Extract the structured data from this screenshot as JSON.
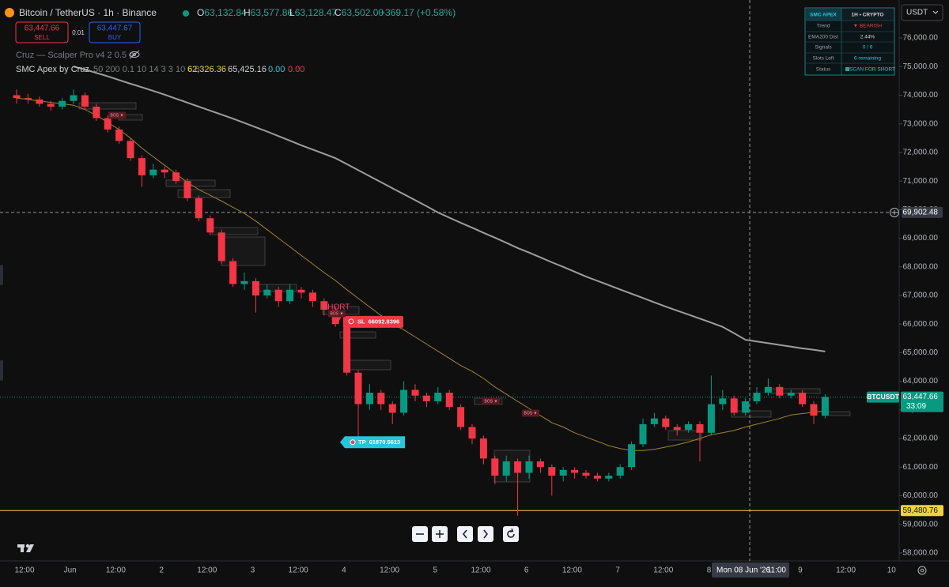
{
  "chart_data": {
    "type": "candlestick",
    "title": "Bitcoin / TetherUS · 1h · Binance",
    "legend_ohlc": [
      {
        "label": "O",
        "value": "63,132.84"
      },
      {
        "label": "H",
        "value": "63,577.86"
      },
      {
        "label": "L",
        "value": "63,128.47"
      },
      {
        "label": "C",
        "value": "63,502.00"
      }
    ],
    "change": "+369.17 (+0.58%)",
    "order": {
      "sell_price": "63,447.66",
      "sell": "SELL",
      "qty": "0.01",
      "buy_price": "63,447.67",
      "buy": "BUY"
    },
    "indicators": [
      {
        "name": "Cruz — Scalper Pro v4 2 0.5 4"
      },
      {
        "name": "SMC Apex by Cruz",
        "params": "50 200 0.1 10 14 3 3 10 6 8",
        "values": [
          "62,326.36",
          "65,425.16",
          "0.00",
          "0.00"
        ]
      }
    ],
    "currency": "USDT",
    "panel": {
      "header": [
        "SMC APEX",
        "1H • CRYPTO"
      ],
      "rows": [
        [
          "Trend",
          "▼ BEARISH"
        ],
        [
          "EMA200 Dist",
          "2.44%"
        ],
        [
          "Signals",
          "0 / 6"
        ],
        [
          "Slots Left",
          "6 remaining"
        ],
        [
          "Status",
          "SCAN FOR SHORT"
        ]
      ]
    },
    "up_color": "#089981",
    "down_color": "#f23645",
    "open": [
      74000,
      73900,
      73850,
      73700,
      73600,
      73800,
      74000,
      73600,
      73200,
      72800,
      72400,
      71800,
      71200,
      71400,
      71300,
      71000,
      70400,
      69700,
      69200,
      68200,
      67400,
      67500,
      67000,
      67200,
      66800,
      67200,
      67100,
      66800,
      66500,
      66000,
      64300,
      63200,
      63600,
      63200,
      62900,
      63700,
      63500,
      63300,
      63600,
      63100,
      62400,
      62000,
      61300,
      60700,
      61200,
      60800,
      61200,
      61000,
      60700,
      60900,
      60800,
      60700,
      60600,
      60700,
      61000,
      61800,
      62500,
      62700,
      62400,
      62300,
      62500,
      62200,
      63200,
      63400,
      62900,
      63300,
      63600,
      63800,
      63500,
      63600,
      63200,
      62800
    ],
    "high": [
      74200,
      74050,
      73950,
      73800,
      73900,
      74200,
      74100,
      73700,
      73300,
      72900,
      72500,
      71900,
      71600,
      71500,
      71400,
      71100,
      70500,
      69800,
      69300,
      68300,
      67800,
      67600,
      67400,
      67300,
      67400,
      67300,
      67200,
      66900,
      66600,
      66100,
      64400,
      63900,
      63700,
      63300,
      64000,
      63900,
      63600,
      63800,
      63700,
      63200,
      62500,
      62100,
      61400,
      61400,
      61300,
      61400,
      61300,
      61100,
      61000,
      61000,
      60900,
      60800,
      60800,
      61100,
      61900,
      62700,
      62900,
      62800,
      62500,
      62600,
      62600,
      64200,
      63700,
      63500,
      63400,
      63800,
      64100,
      63900,
      63700,
      63700,
      63300,
      63550
    ],
    "low": [
      73700,
      73700,
      73600,
      73450,
      73500,
      73700,
      73500,
      73100,
      72700,
      72300,
      71700,
      70800,
      71100,
      71100,
      70900,
      70300,
      69600,
      69100,
      68100,
      67300,
      67200,
      66400,
      66900,
      66600,
      66700,
      66900,
      66600,
      66300,
      65900,
      64200,
      61870,
      63000,
      63000,
      62500,
      62800,
      63300,
      63100,
      63200,
      63000,
      62300,
      61800,
      61100,
      60400,
      60500,
      59300,
      60600,
      60800,
      60000,
      60500,
      60600,
      60600,
      60500,
      60500,
      60600,
      60900,
      61700,
      62400,
      62300,
      62100,
      62200,
      61200,
      62100,
      63000,
      62800,
      62800,
      63200,
      63500,
      63400,
      63400,
      63100,
      62500,
      62700
    ],
    "close": [
      73900,
      73850,
      73700,
      73600,
      73800,
      74000,
      73600,
      73200,
      72800,
      72400,
      71800,
      71200,
      71400,
      71300,
      71000,
      70400,
      69700,
      69200,
      68200,
      67400,
      67500,
      67000,
      67200,
      66800,
      67200,
      67100,
      66800,
      66500,
      66000,
      64300,
      63200,
      63600,
      63200,
      62900,
      63700,
      63500,
      63300,
      63600,
      63100,
      62400,
      62000,
      61300,
      60700,
      61200,
      60800,
      61200,
      61000,
      60700,
      60900,
      60800,
      60700,
      60600,
      60700,
      61000,
      61800,
      62500,
      62700,
      62400,
      62300,
      62500,
      62200,
      63200,
      63400,
      62900,
      63300,
      63600,
      63800,
      63500,
      63600,
      63200,
      62800,
      63450
    ],
    "series": [
      {
        "color": "#a08429",
        "values": [
          73900,
          73850,
          73800,
          73750,
          73700,
          73650,
          73500,
          73300,
          73050,
          72800,
          72500,
          72150,
          71850,
          71550,
          71250,
          70950,
          70700,
          70500,
          70300,
          70080,
          69870,
          69600,
          69300,
          69000,
          68700,
          68400,
          68100,
          67800,
          67520,
          67200,
          66900,
          66600,
          66300,
          66000,
          65800,
          65550,
          65300,
          65050,
          64800,
          64550,
          64350,
          64100,
          63800,
          63550,
          63300,
          63050,
          62800,
          62550,
          62400,
          62200,
          62050,
          61900,
          61750,
          61650,
          61580,
          61580,
          61620,
          61700,
          61780,
          61880,
          62000,
          62130,
          62200,
          62280,
          62400,
          62500,
          62600,
          62700,
          62820,
          62870,
          62920,
          62960
        ]
      },
      {
        "color": "#9e9e9e",
        "values": [
          null,
          null,
          null,
          null,
          null,
          75000,
          74900,
          74780,
          74660,
          74530,
          74400,
          74280,
          74150,
          74020,
          73880,
          73740,
          73600,
          73460,
          73320,
          73180,
          73030,
          72880,
          72730,
          72570,
          72410,
          72250,
          72100,
          71950,
          71800,
          71590,
          71380,
          71170,
          70960,
          70750,
          70540,
          70330,
          70120,
          69900,
          69720,
          69540,
          69370,
          69190,
          69020,
          68840,
          68660,
          68500,
          68330,
          68160,
          68000,
          67830,
          67660,
          67510,
          67360,
          67210,
          67060,
          66910,
          66760,
          66610,
          66470,
          66330,
          66190,
          66050,
          65900,
          65680,
          65450,
          65390,
          65330,
          65270,
          65210,
          65150,
          65100,
          65040
        ]
      }
    ],
    "ylim": [
      57720,
      77190
    ],
    "yticks": [
      {
        "value": 58000,
        "label": "58,000.00"
      },
      {
        "value": 59000,
        "label": "59,000.00"
      },
      {
        "value": 60000,
        "label": "60,000.00"
      },
      {
        "value": 61000,
        "label": "61,000.00"
      },
      {
        "value": 62000,
        "label": "62,000.00"
      },
      {
        "value": 63000,
        "label": "63,000.00"
      },
      {
        "value": 64000,
        "label": "64,000.00"
      },
      {
        "value": 65000,
        "label": "65,000.00"
      },
      {
        "value": 66000,
        "label": "66,000.00"
      },
      {
        "value": 67000,
        "label": "67,000.00"
      },
      {
        "value": 68000,
        "label": "68,000.00"
      },
      {
        "value": 69000,
        "label": "69,000.00"
      },
      {
        "value": 70000,
        "label": "70,000.00"
      },
      {
        "value": 71000,
        "label": "71,000.00"
      },
      {
        "value": 72000,
        "label": "72,000.00"
      },
      {
        "value": 73000,
        "label": "73,000.00"
      },
      {
        "value": 74000,
        "label": "74,000.00"
      },
      {
        "value": 75000,
        "label": "75,000.00"
      },
      {
        "value": 76000,
        "label": "76,000.00"
      }
    ],
    "grid": false,
    "xticks": [
      "12:00",
      "Jun",
      "12:00",
      "2",
      "12:00",
      "3",
      "12:00",
      "4",
      "12:00",
      "5",
      "12:00",
      "6",
      "12:00",
      "7",
      "12:00",
      "8",
      null,
      "9",
      "12:00",
      "10"
    ],
    "price_lines": [
      {
        "value": 59480.76,
        "label": "59,480.76",
        "color": "#f0d33a"
      },
      {
        "value": 63447.66,
        "label": "63,447.66",
        "color": "#089981",
        "symbol": "BTCUSDT",
        "countdown": "33:09"
      }
    ],
    "crosshair": {
      "price": {
        "value": 69902.48,
        "label": "69,902.48"
      },
      "date": "Mon 08 Jun '26",
      "time": "11:00"
    },
    "signal": "SHORT",
    "sl": {
      "label": "SL",
      "value": 66092.8396
    },
    "tp": {
      "label": "TP",
      "value": 61870.5613
    },
    "bos": [
      "BOS ▼",
      "BOS ▼",
      "BOS ▼",
      "BOS ▼"
    ]
  }
}
